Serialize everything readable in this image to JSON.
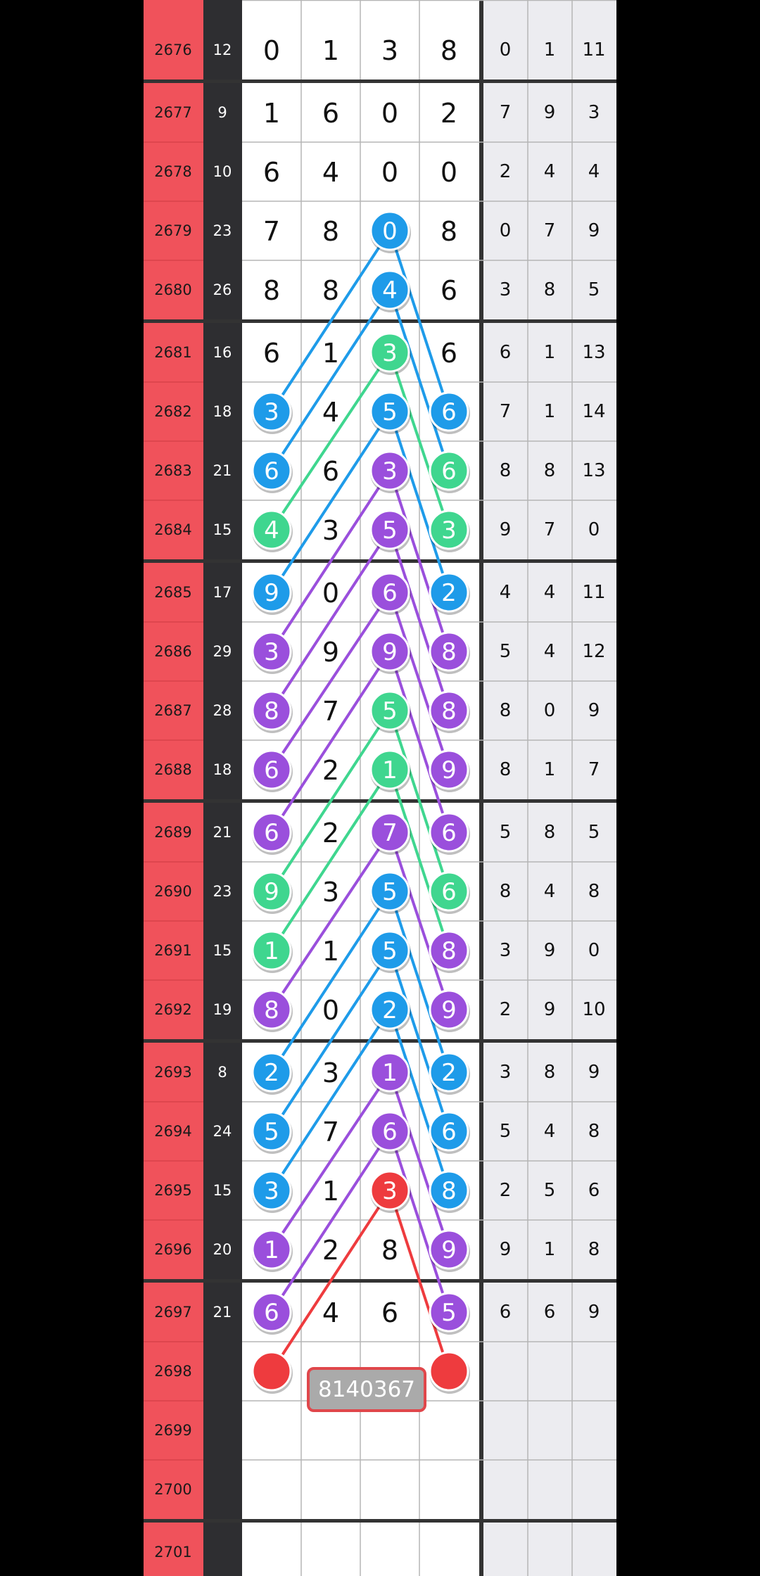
{
  "palette": {
    "blue": "#1e9be9",
    "green": "#3fd68f",
    "purple": "#9a4fdc",
    "red": "#ee3b3e"
  },
  "rows": [
    {
      "period": "2676",
      "sum": 12,
      "digits": [
        0,
        1,
        3,
        8
      ],
      "stats": [
        0,
        1,
        11
      ],
      "balls": [
        null,
        null,
        null,
        null
      ]
    },
    {
      "period": "2677",
      "sum": 9,
      "digits": [
        1,
        6,
        0,
        2
      ],
      "stats": [
        7,
        9,
        3
      ],
      "balls": [
        null,
        null,
        null,
        null
      ]
    },
    {
      "period": "2678",
      "sum": 10,
      "digits": [
        6,
        4,
        0,
        0
      ],
      "stats": [
        2,
        4,
        4
      ],
      "balls": [
        null,
        null,
        null,
        null
      ]
    },
    {
      "period": "2679",
      "sum": 23,
      "digits": [
        7,
        8,
        0,
        8
      ],
      "stats": [
        0,
        7,
        9
      ],
      "balls": [
        null,
        null,
        "blue",
        null
      ]
    },
    {
      "period": "2680",
      "sum": 26,
      "digits": [
        8,
        8,
        4,
        6
      ],
      "stats": [
        3,
        8,
        5
      ],
      "balls": [
        null,
        null,
        "blue",
        null
      ]
    },
    {
      "period": "2681",
      "sum": 16,
      "digits": [
        6,
        1,
        3,
        6
      ],
      "stats": [
        6,
        1,
        13
      ],
      "balls": [
        null,
        null,
        "green",
        null
      ]
    },
    {
      "period": "2682",
      "sum": 18,
      "digits": [
        3,
        4,
        5,
        6
      ],
      "stats": [
        7,
        1,
        14
      ],
      "balls": [
        "blue",
        null,
        "blue",
        "blue"
      ]
    },
    {
      "period": "2683",
      "sum": 21,
      "digits": [
        6,
        6,
        3,
        6
      ],
      "stats": [
        8,
        8,
        13
      ],
      "balls": [
        "blue",
        null,
        "purple",
        "green"
      ]
    },
    {
      "period": "2684",
      "sum": 15,
      "digits": [
        4,
        3,
        5,
        3
      ],
      "stats": [
        9,
        7,
        0
      ],
      "balls": [
        "green",
        null,
        "purple",
        "green"
      ]
    },
    {
      "period": "2685",
      "sum": 17,
      "digits": [
        9,
        0,
        6,
        2
      ],
      "stats": [
        4,
        4,
        11
      ],
      "balls": [
        "blue",
        null,
        "purple",
        "blue"
      ]
    },
    {
      "period": "2686",
      "sum": 29,
      "digits": [
        3,
        9,
        9,
        8
      ],
      "stats": [
        5,
        4,
        12
      ],
      "balls": [
        "purple",
        null,
        "purple",
        "purple"
      ]
    },
    {
      "period": "2687",
      "sum": 28,
      "digits": [
        8,
        7,
        5,
        8
      ],
      "stats": [
        8,
        0,
        9
      ],
      "balls": [
        "purple",
        null,
        "green",
        "purple"
      ]
    },
    {
      "period": "2688",
      "sum": 18,
      "digits": [
        6,
        2,
        1,
        9
      ],
      "stats": [
        8,
        1,
        7
      ],
      "balls": [
        "purple",
        null,
        "green",
        "purple"
      ]
    },
    {
      "period": "2689",
      "sum": 21,
      "digits": [
        6,
        2,
        7,
        6
      ],
      "stats": [
        5,
        8,
        5
      ],
      "balls": [
        "purple",
        null,
        "purple",
        "purple"
      ]
    },
    {
      "period": "2690",
      "sum": 23,
      "digits": [
        9,
        3,
        5,
        6
      ],
      "stats": [
        8,
        4,
        8
      ],
      "balls": [
        "green",
        null,
        "blue",
        "green"
      ]
    },
    {
      "period": "2691",
      "sum": 15,
      "digits": [
        1,
        1,
        5,
        8
      ],
      "stats": [
        3,
        9,
        0
      ],
      "balls": [
        "green",
        null,
        "blue",
        "purple"
      ]
    },
    {
      "period": "2692",
      "sum": 19,
      "digits": [
        8,
        0,
        2,
        9
      ],
      "stats": [
        2,
        9,
        10
      ],
      "balls": [
        "purple",
        null,
        "blue",
        "purple"
      ]
    },
    {
      "period": "2693",
      "sum": 8,
      "digits": [
        2,
        3,
        1,
        2
      ],
      "stats": [
        3,
        8,
        9
      ],
      "balls": [
        "blue",
        null,
        "purple",
        "blue"
      ]
    },
    {
      "period": "2694",
      "sum": 24,
      "digits": [
        5,
        7,
        6,
        6
      ],
      "stats": [
        5,
        4,
        8
      ],
      "balls": [
        "blue",
        null,
        "purple",
        "blue"
      ]
    },
    {
      "period": "2695",
      "sum": 15,
      "digits": [
        3,
        1,
        3,
        8
      ],
      "stats": [
        2,
        5,
        6
      ],
      "balls": [
        "blue",
        null,
        "red",
        "blue"
      ]
    },
    {
      "period": "2696",
      "sum": 20,
      "digits": [
        1,
        2,
        8,
        9
      ],
      "stats": [
        9,
        1,
        8
      ],
      "balls": [
        "purple",
        null,
        null,
        "purple"
      ]
    },
    {
      "period": "2697",
      "sum": 21,
      "digits": [
        6,
        4,
        6,
        5
      ],
      "stats": [
        6,
        6,
        9
      ],
      "balls": [
        "purple",
        null,
        null,
        "purple"
      ]
    },
    {
      "period": "2698",
      "digits": [],
      "stats": [],
      "balls": [
        "red",
        null,
        null,
        "red"
      ]
    },
    {
      "period": "2699",
      "digits": [],
      "stats": [],
      "balls": [
        null,
        null,
        null,
        null
      ]
    },
    {
      "period": "2700",
      "digits": [],
      "stats": [],
      "balls": [
        null,
        null,
        null,
        null
      ]
    },
    {
      "period": "2701",
      "digits": [],
      "stats": [],
      "balls": [
        null,
        null,
        null,
        null
      ]
    }
  ],
  "draw_label": "8140367"
}
